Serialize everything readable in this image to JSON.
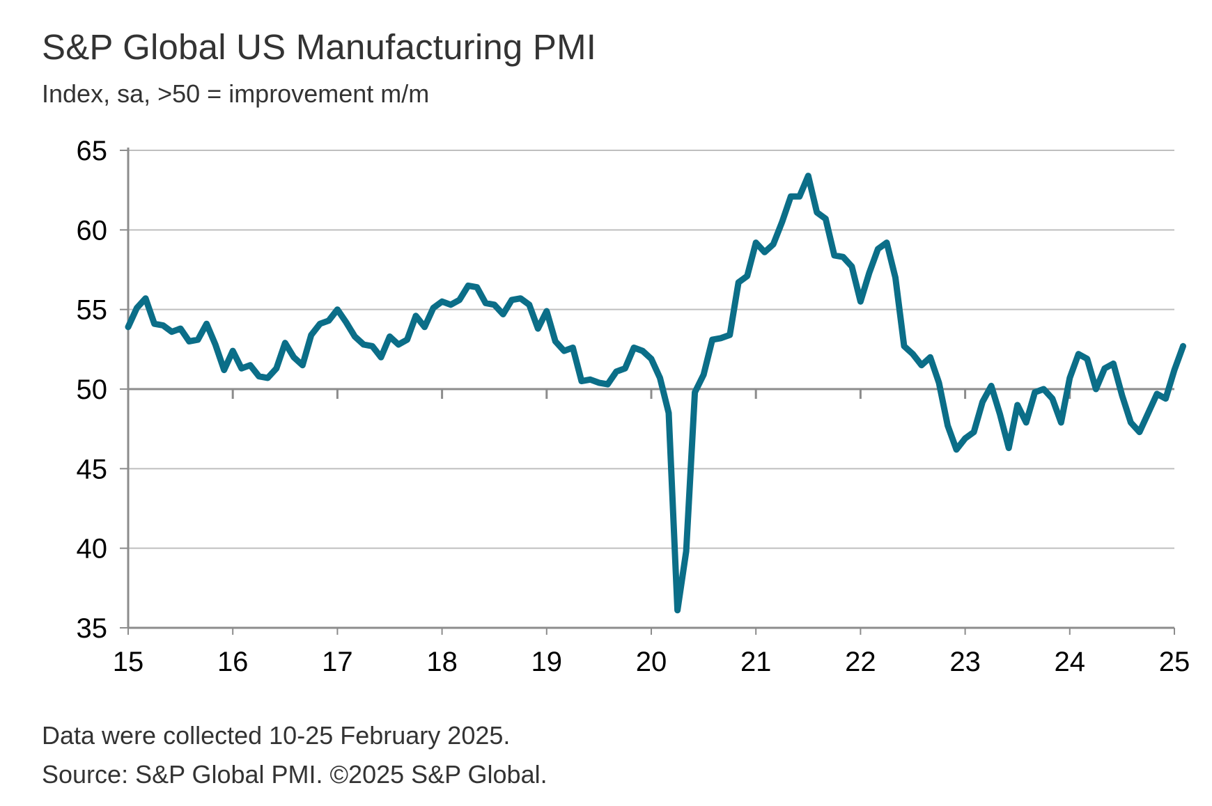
{
  "header": {
    "title": "S&P Global US Manufacturing PMI",
    "subtitle": "Index, sa, >50 = improvement m/m"
  },
  "footer": {
    "collected": "Data were collected 10-25 February 2025.",
    "source": "Source: S&P Global PMI. ©2025 S&P Global."
  },
  "colors": {
    "series": "#0b6e88",
    "gridline": "#bfbfbf",
    "axis": "#8c8c8c",
    "text": "#333333"
  },
  "chart_data": {
    "type": "line",
    "title": "S&P Global US Manufacturing PMI",
    "subtitle": "Index, sa, >50 = improvement m/m",
    "xlabel": "",
    "ylabel": "",
    "ylim": [
      35,
      65
    ],
    "xlim": [
      "2015-01",
      "2025-02"
    ],
    "yticks": [
      "65",
      "60",
      "55",
      "50",
      "45",
      "40",
      "35"
    ],
    "xticks": [
      "15",
      "16",
      "17",
      "18",
      "19",
      "20",
      "21",
      "22",
      "23",
      "24",
      "25"
    ],
    "reference_line": 50,
    "grid": "horizontal",
    "legend": "none",
    "series": [
      {
        "x": [
          "2015-01",
          "2015-02",
          "2015-03",
          "2015-04",
          "2015-05",
          "2015-06",
          "2015-07",
          "2015-08",
          "2015-09",
          "2015-10",
          "2015-11",
          "2015-12",
          "2016-01",
          "2016-02",
          "2016-03",
          "2016-04",
          "2016-05",
          "2016-06",
          "2016-07",
          "2016-08",
          "2016-09",
          "2016-10",
          "2016-11",
          "2016-12",
          "2017-01",
          "2017-02",
          "2017-03",
          "2017-04",
          "2017-05",
          "2017-06",
          "2017-07",
          "2017-08",
          "2017-09",
          "2017-10",
          "2017-11",
          "2017-12",
          "2018-01",
          "2018-02",
          "2018-03",
          "2018-04",
          "2018-05",
          "2018-06",
          "2018-07",
          "2018-08",
          "2018-09",
          "2018-10",
          "2018-11",
          "2018-12",
          "2019-01",
          "2019-02",
          "2019-03",
          "2019-04",
          "2019-05",
          "2019-06",
          "2019-07",
          "2019-08",
          "2019-09",
          "2019-10",
          "2019-11",
          "2019-12",
          "2020-01",
          "2020-02",
          "2020-03",
          "2020-04",
          "2020-05",
          "2020-06",
          "2020-07",
          "2020-08",
          "2020-09",
          "2020-10",
          "2020-11",
          "2020-12",
          "2021-01",
          "2021-02",
          "2021-03",
          "2021-04",
          "2021-05",
          "2021-06",
          "2021-07",
          "2021-08",
          "2021-09",
          "2021-10",
          "2021-11",
          "2021-12",
          "2022-01",
          "2022-02",
          "2022-03",
          "2022-04",
          "2022-05",
          "2022-06",
          "2022-07",
          "2022-08",
          "2022-09",
          "2022-10",
          "2022-11",
          "2022-12",
          "2023-01",
          "2023-02",
          "2023-03",
          "2023-04",
          "2023-05",
          "2023-06",
          "2023-07",
          "2023-08",
          "2023-09",
          "2023-10",
          "2023-11",
          "2023-12",
          "2024-01",
          "2024-02",
          "2024-03",
          "2024-04",
          "2024-05",
          "2024-06",
          "2024-07",
          "2024-08",
          "2024-09",
          "2024-10",
          "2024-11",
          "2024-12",
          "2025-01",
          "2025-02"
        ],
        "y": [
          53.9,
          55.1,
          55.7,
          54.1,
          54.0,
          53.6,
          53.8,
          53.0,
          53.1,
          54.1,
          52.8,
          51.2,
          52.4,
          51.3,
          51.5,
          50.8,
          50.7,
          51.3,
          52.9,
          52.0,
          51.5,
          53.4,
          54.1,
          54.3,
          55.0,
          54.2,
          53.3,
          52.8,
          52.7,
          52.0,
          53.3,
          52.8,
          53.1,
          54.6,
          53.9,
          55.1,
          55.5,
          55.3,
          55.6,
          56.5,
          56.4,
          55.4,
          55.3,
          54.7,
          55.6,
          55.7,
          55.3,
          53.8,
          54.9,
          53.0,
          52.4,
          52.6,
          50.5,
          50.6,
          50.4,
          50.3,
          51.1,
          51.3,
          52.6,
          52.4,
          51.9,
          50.7,
          48.5,
          36.1,
          39.8,
          49.8,
          50.9,
          53.1,
          53.2,
          53.4,
          56.7,
          57.1,
          59.2,
          58.6,
          59.1,
          60.5,
          62.1,
          62.1,
          63.4,
          61.1,
          60.7,
          58.4,
          58.3,
          57.7,
          55.5,
          57.3,
          58.8,
          59.2,
          57.0,
          52.7,
          52.2,
          51.5,
          52.0,
          50.4,
          47.7,
          46.2,
          46.9,
          47.3,
          49.2,
          50.2,
          48.4,
          46.3,
          49.0,
          47.9,
          49.8,
          50.0,
          49.4,
          47.9,
          50.7,
          52.2,
          51.9,
          50.0,
          51.3,
          51.6,
          49.6,
          47.9,
          47.3,
          48.5,
          49.7,
          49.4,
          51.2,
          52.7
        ]
      }
    ]
  }
}
